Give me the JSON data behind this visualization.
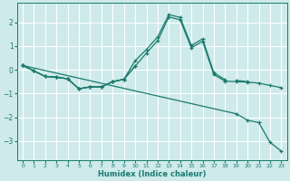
{
  "xlabel": "Humidex (Indice chaleur)",
  "xlim": [
    -0.5,
    23.5
  ],
  "ylim": [
    -3.8,
    2.8
  ],
  "xticks": [
    0,
    1,
    2,
    3,
    4,
    5,
    6,
    7,
    8,
    9,
    10,
    11,
    12,
    13,
    14,
    15,
    16,
    17,
    18,
    19,
    20,
    21,
    22,
    23
  ],
  "yticks": [
    -3,
    -2,
    -1,
    0,
    1,
    2
  ],
  "bg_color": "#ceeaea",
  "grid_color": "#ffffff",
  "line_color": "#1a7a6e",
  "series": {
    "peak": {
      "x": [
        0,
        1,
        2,
        3,
        4,
        5,
        6,
        7,
        8,
        9,
        10,
        11,
        12,
        13,
        14,
        15,
        16,
        17,
        18
      ],
      "y": [
        0.18,
        -0.05,
        -0.28,
        -0.3,
        -0.38,
        -0.8,
        -0.72,
        -0.72,
        -0.5,
        -0.4,
        0.38,
        0.85,
        1.38,
        2.32,
        2.2,
        1.02,
        1.3,
        -0.12,
        -0.42
      ]
    },
    "flat": {
      "x": [
        0,
        1,
        2,
        3,
        4,
        5,
        6,
        7,
        8,
        9,
        10,
        19,
        20
      ],
      "y": [
        0.18,
        -0.05,
        -0.28,
        -0.32,
        -0.38,
        -0.8,
        -0.72,
        -0.72,
        -0.5,
        -0.4,
        0.15,
        -0.45,
        -0.5
      ]
    },
    "descent": {
      "x": [
        0,
        19,
        20,
        21,
        22,
        23
      ],
      "y": [
        0.18,
        -1.85,
        -2.12,
        -2.22,
        -3.05,
        -3.42
      ]
    },
    "midfull": {
      "x": [
        0,
        1,
        2,
        3,
        4,
        5,
        6,
        7,
        8,
        9,
        10,
        11,
        12,
        13,
        14,
        15,
        16,
        17,
        18,
        19,
        20,
        21,
        22,
        23
      ],
      "y": [
        0.18,
        -0.05,
        -0.28,
        -0.32,
        -0.38,
        -0.8,
        -0.72,
        -0.72,
        -0.5,
        -0.4,
        0.15,
        0.7,
        1.22,
        2.22,
        2.1,
        0.92,
        1.2,
        -0.2,
        -0.48,
        -0.5,
        -0.52,
        -0.56,
        -0.66,
        -0.75
      ]
    }
  }
}
